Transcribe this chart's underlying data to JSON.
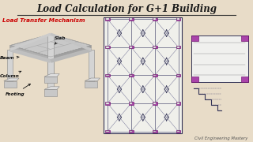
{
  "title": "Load Calculation for G+1 Building",
  "subtitle": "Load Transfer Mechanism",
  "watermark": "Civil Engineering Mastery",
  "bg_color": "#e8dcc8",
  "title_color": "#1a1a1a",
  "subtitle_color": "#cc0000",
  "purple": "#aa44aa",
  "grid_color": "#555577"
}
